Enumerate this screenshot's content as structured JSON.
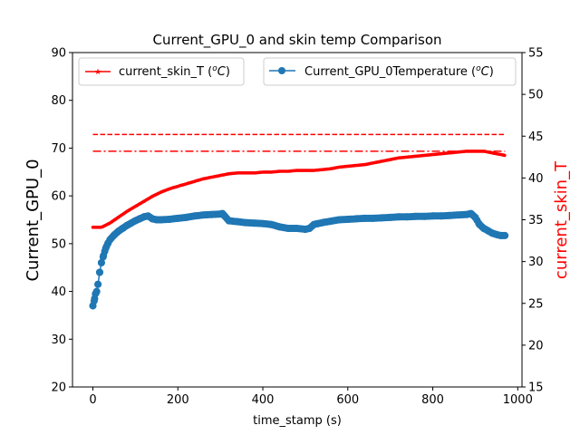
{
  "chart_data": {
    "type": "line",
    "title": "Current_GPU_0 and skin temp Comparison",
    "xlabel": "time_stamp (s)",
    "ylabel_left": "Current_GPU_0",
    "ylabel_right": "current_skin_T",
    "xlim": [
      -48,
      1010
    ],
    "ylim_left": [
      20,
      90
    ],
    "ylim_right": [
      15,
      55
    ],
    "x_ticks": [
      "0",
      "200",
      "400",
      "600",
      "800",
      "1000"
    ],
    "y_ticks_left": [
      "20",
      "30",
      "40",
      "50",
      "60",
      "70",
      "80",
      "90"
    ],
    "y_ticks_right": [
      "15",
      "20",
      "25",
      "30",
      "35",
      "40",
      "45",
      "50",
      "55"
    ],
    "grid": false,
    "series": [
      {
        "name": "current_skin_T (°C)",
        "legend_name": "current_skin_T",
        "legend_unit": "C",
        "axis": "right",
        "color": "#ff0000",
        "marker": "star",
        "x": [
          0,
          20,
          40,
          60,
          80,
          100,
          120,
          140,
          160,
          180,
          200,
          220,
          240,
          260,
          280,
          300,
          320,
          340,
          360,
          380,
          400,
          420,
          440,
          460,
          480,
          500,
          520,
          540,
          560,
          580,
          600,
          620,
          640,
          660,
          680,
          700,
          720,
          740,
          760,
          780,
          800,
          820,
          840,
          860,
          880,
          900,
          920,
          940,
          960,
          970
        ],
        "y": [
          34.1,
          34.1,
          34.6,
          35.3,
          36.0,
          36.6,
          37.2,
          37.8,
          38.3,
          38.7,
          39.0,
          39.3,
          39.6,
          39.9,
          40.1,
          40.3,
          40.5,
          40.6,
          40.6,
          40.6,
          40.7,
          40.7,
          40.8,
          40.8,
          40.9,
          40.9,
          40.9,
          41.0,
          41.1,
          41.3,
          41.4,
          41.5,
          41.6,
          41.8,
          42.0,
          42.2,
          42.4,
          42.5,
          42.6,
          42.7,
          42.8,
          42.9,
          43.0,
          43.1,
          43.2,
          43.2,
          43.2,
          43.0,
          42.8,
          42.7
        ]
      },
      {
        "name": "Current_GPU_0Temperature (°C)",
        "legend_name": "Current_GPU_0Temperature",
        "legend_unit": "C",
        "axis": "left",
        "color": "#1f77b4",
        "marker": "circle",
        "x": [
          0,
          3,
          6,
          9,
          12,
          16,
          20,
          25,
          30,
          35,
          40,
          50,
          60,
          70,
          80,
          90,
          100,
          110,
          120,
          130,
          140,
          150,
          160,
          180,
          200,
          220,
          240,
          260,
          280,
          300,
          305,
          310,
          320,
          340,
          360,
          380,
          400,
          420,
          440,
          460,
          480,
          500,
          510,
          520,
          530,
          540,
          560,
          580,
          600,
          620,
          640,
          660,
          680,
          700,
          720,
          740,
          760,
          780,
          800,
          820,
          840,
          860,
          880,
          890,
          900,
          910,
          920,
          930,
          940,
          950,
          960,
          970
        ],
        "y": [
          37.0,
          38.0,
          39.5,
          40.0,
          41.5,
          44.0,
          46.0,
          47.5,
          49.0,
          50.0,
          50.8,
          51.8,
          52.6,
          53.2,
          53.8,
          54.3,
          54.8,
          55.2,
          55.6,
          55.8,
          55.2,
          55.0,
          55.0,
          55.1,
          55.3,
          55.5,
          55.8,
          56.0,
          56.1,
          56.2,
          56.3,
          55.8,
          54.8,
          54.6,
          54.4,
          54.3,
          54.2,
          54.0,
          53.5,
          53.2,
          53.2,
          53.0,
          53.2,
          54.0,
          54.2,
          54.4,
          54.7,
          55.0,
          55.1,
          55.2,
          55.3,
          55.3,
          55.4,
          55.5,
          55.6,
          55.6,
          55.7,
          55.7,
          55.8,
          55.8,
          55.9,
          56.0,
          56.1,
          56.3,
          55.5,
          54.0,
          53.2,
          52.7,
          52.2,
          51.9,
          51.7,
          51.7
        ]
      }
    ],
    "reference_lines": [
      {
        "style": "dashed",
        "axis": "right",
        "y": 45.2,
        "x_start": 0,
        "x_end": 970,
        "color": "#ff0000"
      },
      {
        "style": "dashdot",
        "axis": "right",
        "y": 43.2,
        "x_start": 0,
        "x_end": 970,
        "color": "#ff0000"
      }
    ],
    "legend_placement": [
      "upper-left",
      "upper-right"
    ]
  }
}
